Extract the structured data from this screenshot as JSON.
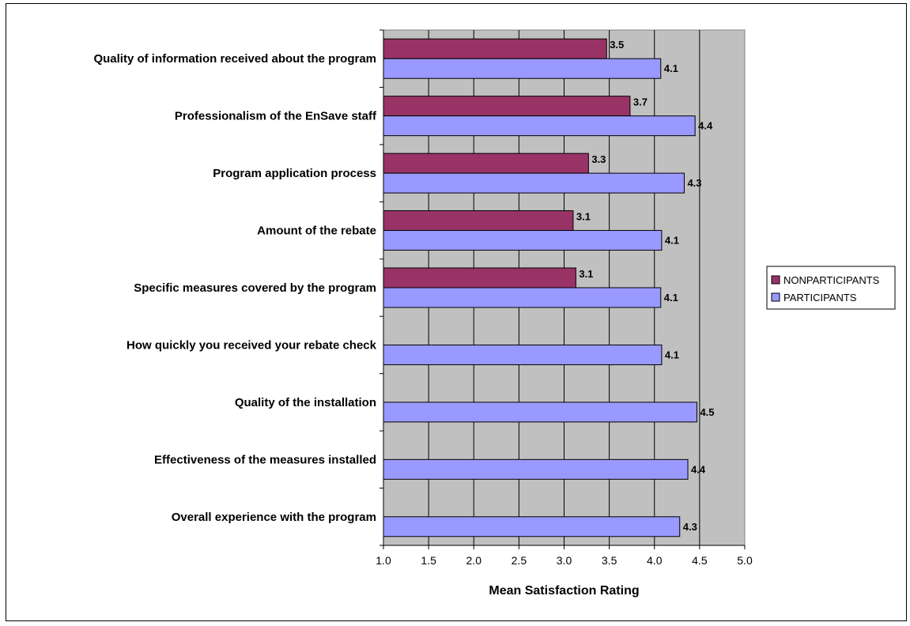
{
  "chart_data": {
    "type": "bar",
    "orientation": "horizontal",
    "title": "",
    "xlabel": "Mean Satisfaction Rating",
    "ylabel": "",
    "xlim": [
      1.0,
      5.0
    ],
    "x_ticks": [
      "1.0",
      "1.5",
      "2.0",
      "2.5",
      "3.0",
      "3.5",
      "4.0",
      "4.5",
      "5.0"
    ],
    "grid": true,
    "legend_position": "right",
    "categories": [
      "Quality of information received about the program",
      "Professionalism of the EnSave staff",
      "Program application process",
      "Amount of the  rebate",
      "Specific measures covered by the program",
      "How quickly you received your rebate check",
      "Quality  of  the installation",
      "Effectiveness  of  the  measures  installed",
      "Overall experience with the program"
    ],
    "series": [
      {
        "name": "NONPARTICIPANTS",
        "color": "#993366",
        "values": [
          3.47,
          3.73,
          3.27,
          3.1,
          3.13,
          null,
          null,
          null,
          null
        ],
        "labels": [
          "3.5",
          "3.7",
          "3.3",
          "3.1",
          "3.1",
          null,
          null,
          null,
          null
        ]
      },
      {
        "name": "PARTICIPANTS",
        "color": "#9999ff",
        "values": [
          4.07,
          4.45,
          4.33,
          4.08,
          4.07,
          4.08,
          4.47,
          4.37,
          4.28
        ],
        "labels": [
          "4.1",
          "4.4",
          "4.3",
          "4.1",
          "4.1",
          "4.1",
          "4.5",
          "4.4",
          "4.3"
        ]
      }
    ],
    "plot_background": "#c0c0c0"
  }
}
